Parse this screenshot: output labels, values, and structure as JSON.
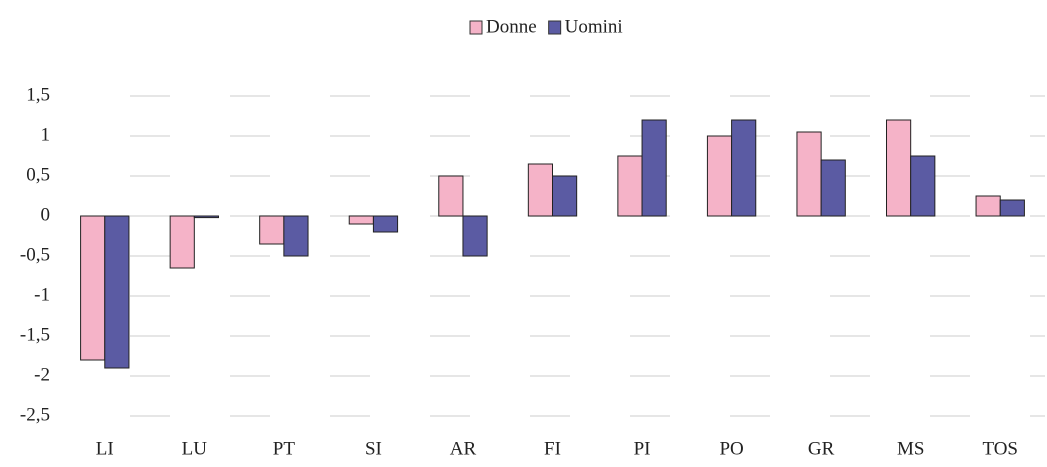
{
  "chart_data": {
    "type": "bar",
    "categories": [
      "LI",
      "LU",
      "PT",
      "SI",
      "AR",
      "FI",
      "PI",
      "PO",
      "GR",
      "MS",
      "TOS"
    ],
    "series": [
      {
        "name": "Donne",
        "color": "#f5b3c8",
        "values": [
          -1.8,
          -0.65,
          -0.35,
          -0.1,
          0.5,
          0.65,
          0.75,
          1.0,
          1.05,
          1.2,
          0.25
        ]
      },
      {
        "name": "Uomini",
        "color": "#5b5ba3",
        "values": [
          -1.9,
          -0.02,
          -0.5,
          -0.2,
          -0.5,
          0.5,
          1.2,
          1.2,
          0.7,
          0.75,
          0.2
        ]
      }
    ],
    "ylim": [
      -2.5,
      1.5
    ],
    "yticks": [
      {
        "value": -2.5,
        "label": "-2,5"
      },
      -2,
      {
        "value": -1.5,
        "label": "-1,5"
      },
      -1,
      {
        "value": -0.5,
        "label": "-0,5"
      },
      0,
      {
        "value": 0.5,
        "label": "0,5"
      },
      1,
      {
        "value": 1.5,
        "label": "1,5"
      }
    ],
    "grid": true,
    "legend": "top"
  }
}
